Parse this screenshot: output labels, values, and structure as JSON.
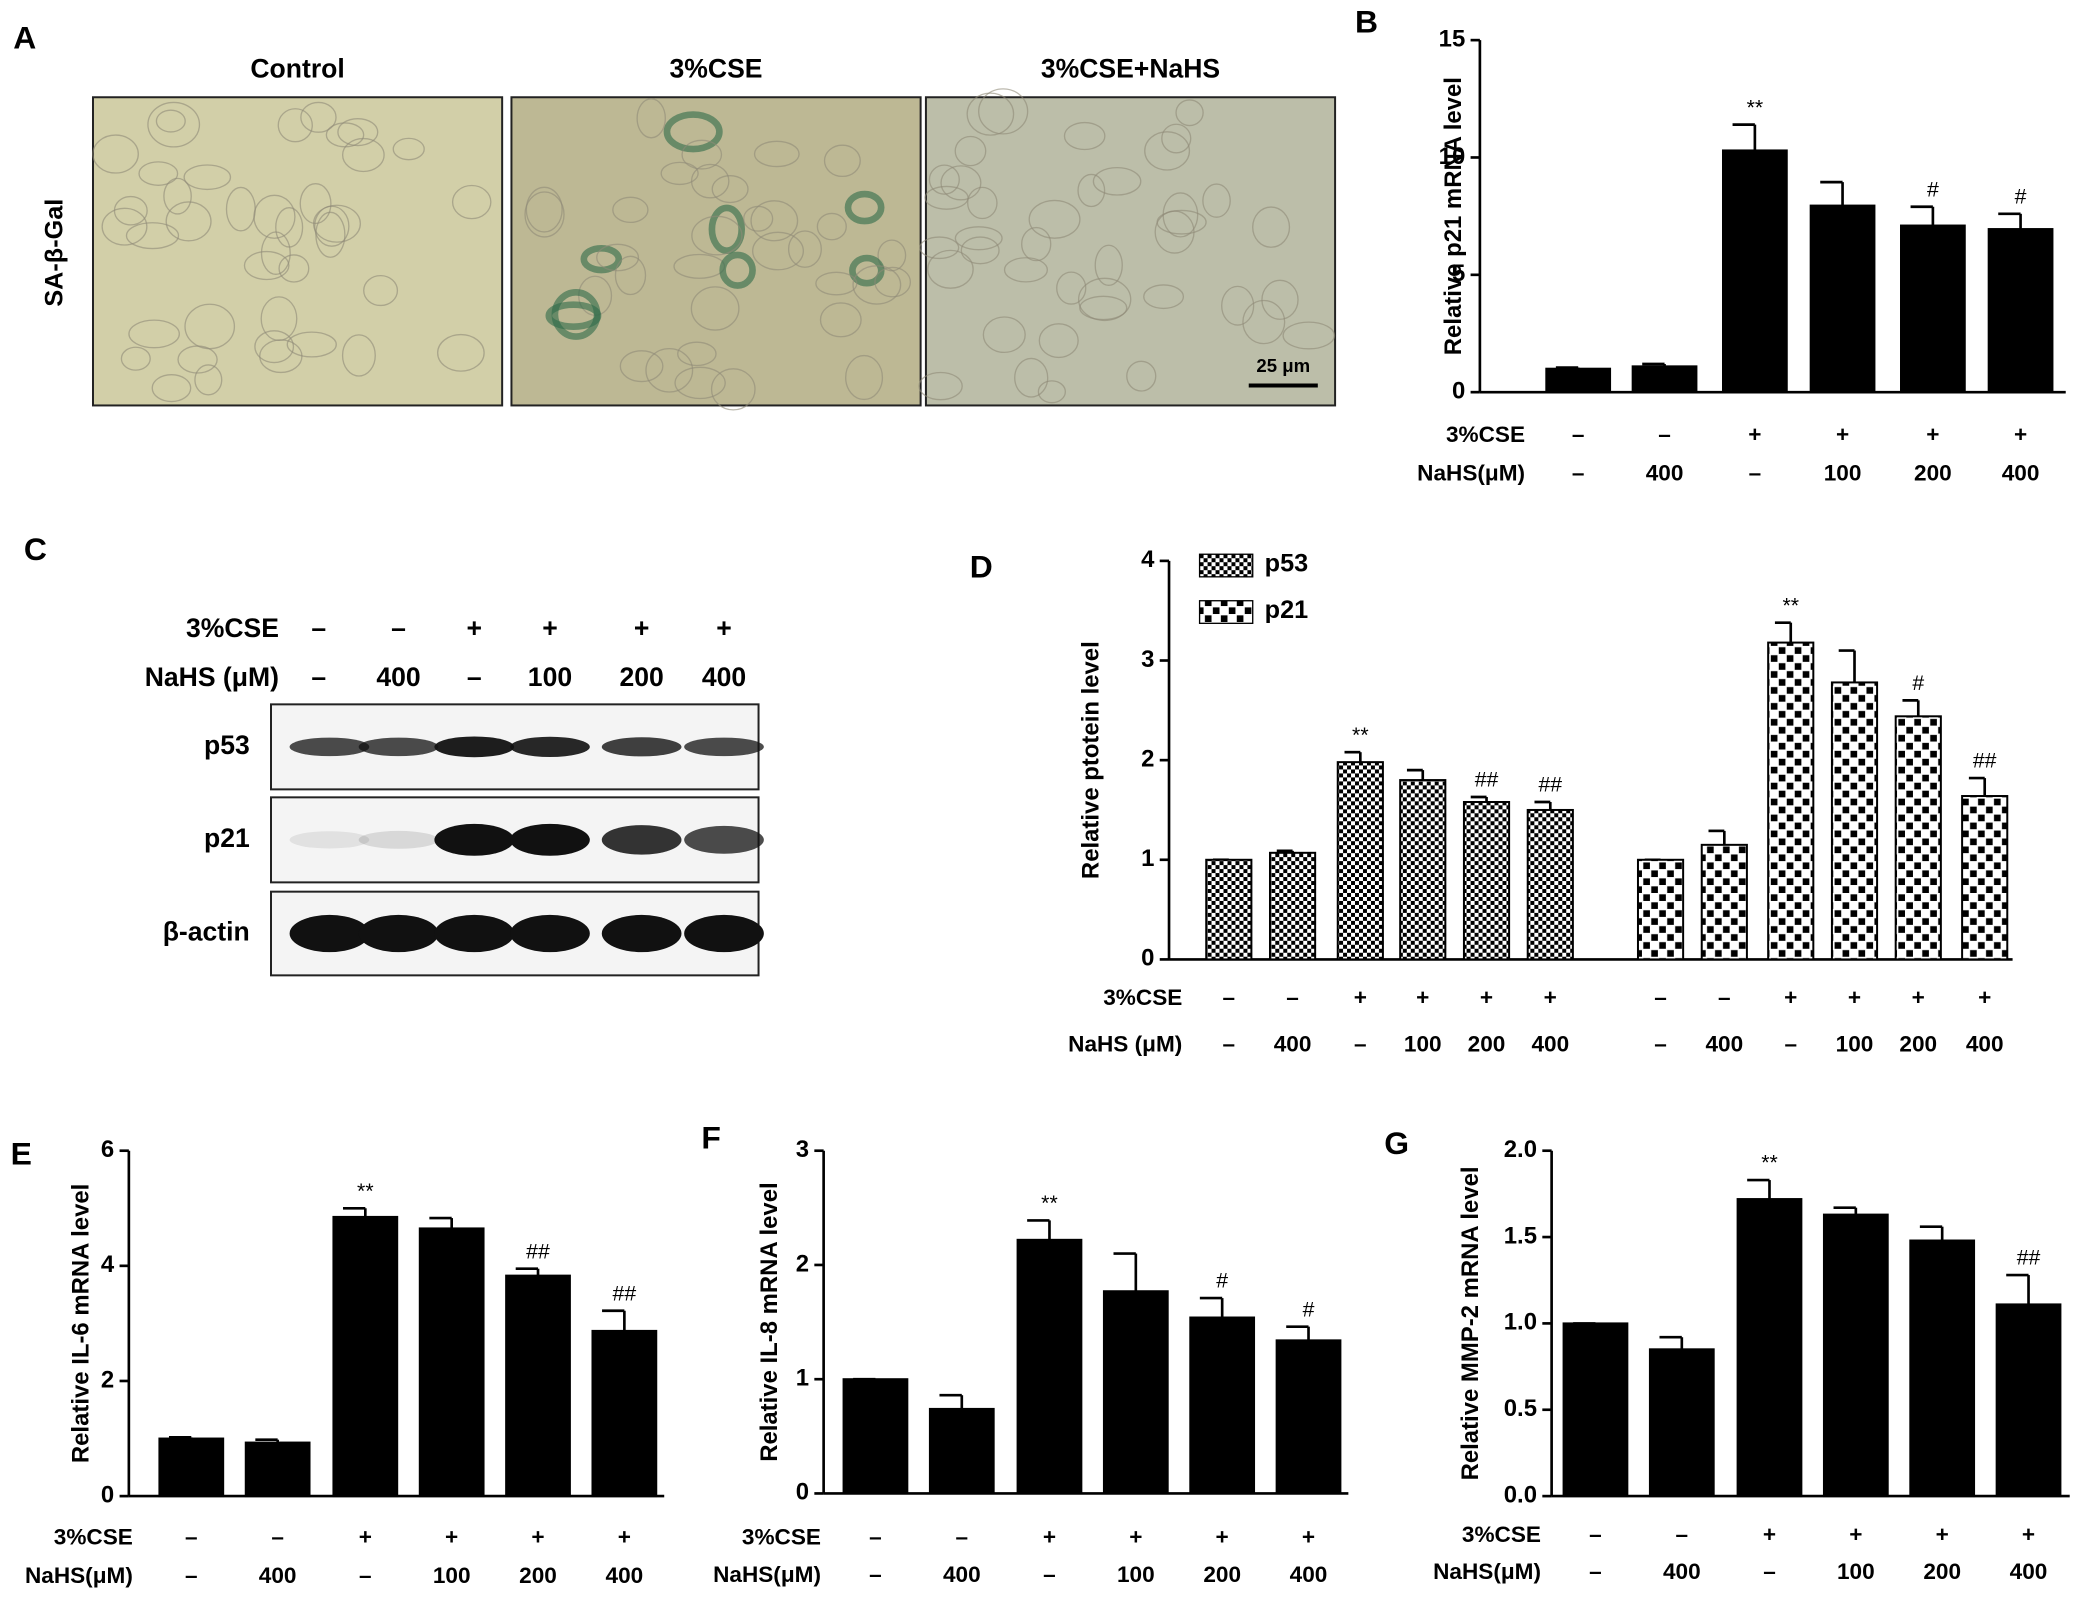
{
  "panel_a": {
    "letter": "A",
    "row_label": "SA-β-Gal",
    "columns": [
      "Control",
      "3%CSE",
      "3%CSE+NaHS"
    ],
    "scale_bar": "25 μm"
  },
  "panel_c": {
    "letter": "C",
    "treatment_rows": [
      {
        "label": "3%CSE",
        "values": [
          "–",
          "–",
          "+",
          "+",
          "+",
          "+"
        ]
      },
      {
        "label": "NaHS (μM)",
        "values": [
          "–",
          "400",
          "–",
          "100",
          "200",
          "400"
        ]
      }
    ],
    "blots": [
      "p53",
      "p21",
      "β-actin"
    ]
  },
  "chart_data": [
    {
      "type": "bar",
      "panel": "B",
      "ylabel": "Relative p21 mRNA level",
      "ylim": [
        0,
        15
      ],
      "yticks": [
        0,
        5,
        10,
        15
      ],
      "color": "#000000",
      "treatment_rows": [
        {
          "label": "3%CSE",
          "values": [
            "–",
            "–",
            "+",
            "+",
            "+",
            "+"
          ]
        },
        {
          "label": "NaHS(μM)",
          "values": [
            "–",
            "400",
            "–",
            "100",
            "200",
            "400"
          ]
        }
      ],
      "values": [
        1,
        1.1,
        10.3,
        7.95,
        7.1,
        6.95
      ],
      "errors": [
        0.05,
        0.1,
        1.1,
        1.0,
        0.8,
        0.65
      ],
      "annotations": [
        null,
        null,
        "**",
        null,
        "#",
        "#"
      ]
    },
    {
      "type": "grouped-bar",
      "panel": "D",
      "ylabel": "Relative ptotein level",
      "ylim": [
        0,
        4
      ],
      "yticks": [
        0,
        1,
        2,
        3,
        4
      ],
      "legend": "top-left",
      "treatment_rows": [
        {
          "label": "3%CSE",
          "values": [
            "–",
            "–",
            "+",
            "+",
            "+",
            "+",
            "–",
            "–",
            "+",
            "+",
            "+",
            "+"
          ]
        },
        {
          "label": "NaHS (μM)",
          "values": [
            "–",
            "400",
            "–",
            "100",
            "200",
            "400",
            "–",
            "400",
            "–",
            "100",
            "200",
            "400"
          ]
        }
      ],
      "series": [
        {
          "name": "p53",
          "color": "#000000",
          "pattern": "fine-check",
          "values": [
            1,
            1.07,
            1.98,
            1.8,
            1.58,
            1.5
          ],
          "errors": [
            0,
            0.02,
            0.1,
            0.1,
            0.05,
            0.08
          ],
          "annotations": [
            null,
            null,
            "**",
            null,
            "##",
            "##"
          ]
        },
        {
          "name": "p21",
          "color": "#000000",
          "pattern": "coarse-check",
          "values": [
            1,
            1.15,
            3.18,
            2.78,
            2.44,
            1.64
          ],
          "errors": [
            0,
            0.14,
            0.2,
            0.32,
            0.16,
            0.18
          ],
          "annotations": [
            null,
            null,
            "**",
            null,
            "#",
            "##"
          ]
        }
      ]
    },
    {
      "type": "bar",
      "panel": "E",
      "ylabel": "Relative IL-6 mRNA level",
      "ylim": [
        0,
        6
      ],
      "yticks": [
        0,
        2,
        4,
        6
      ],
      "color": "#000000",
      "treatment_rows": [
        {
          "label": "3%CSE",
          "values": [
            "–",
            "–",
            "+",
            "+",
            "+",
            "+"
          ]
        },
        {
          "label": "NaHS(μM)",
          "values": [
            "–",
            "400",
            "–",
            "100",
            "200",
            "400"
          ]
        }
      ],
      "values": [
        1,
        0.93,
        4.85,
        4.65,
        3.83,
        2.87
      ],
      "errors": [
        0.02,
        0.05,
        0.15,
        0.18,
        0.12,
        0.35
      ],
      "annotations": [
        null,
        null,
        "**",
        null,
        "##",
        "##"
      ]
    },
    {
      "type": "bar",
      "panel": "F",
      "ylabel": "Relative IL-8 mRNA level",
      "ylim": [
        0,
        3
      ],
      "yticks": [
        0,
        1,
        2,
        3
      ],
      "color": "#000000",
      "treatment_rows": [
        {
          "label": "3%CSE",
          "values": [
            "–",
            "–",
            "+",
            "+",
            "+",
            "+"
          ]
        },
        {
          "label": "NaHS(μM)",
          "values": [
            "–",
            "400",
            "–",
            "100",
            "200",
            "400"
          ]
        }
      ],
      "values": [
        1,
        0.74,
        2.22,
        1.77,
        1.54,
        1.34
      ],
      "errors": [
        0,
        0.12,
        0.17,
        0.33,
        0.17,
        0.12
      ],
      "annotations": [
        null,
        null,
        "**",
        null,
        "#",
        "#"
      ]
    },
    {
      "type": "bar",
      "panel": "G",
      "ylabel": "Relative MMP-2 mRNA level",
      "ylim": [
        0,
        2
      ],
      "yticks": [
        {
          "value": 0,
          "label": "0.0"
        },
        {
          "value": 0.5,
          "label": "0.5"
        },
        {
          "value": 1,
          "label": "1.0"
        },
        {
          "value": 1.5,
          "label": "1.5"
        },
        {
          "value": 2,
          "label": "2.0"
        }
      ],
      "color": "#000000",
      "treatment_rows": [
        {
          "label": "3%CSE",
          "values": [
            "–",
            "–",
            "+",
            "+",
            "+",
            "+"
          ]
        },
        {
          "label": "NaHS(μM)",
          "values": [
            "–",
            "400",
            "–",
            "100",
            "200",
            "400"
          ]
        }
      ],
      "values": [
        1,
        0.85,
        1.72,
        1.63,
        1.48,
        1.11
      ],
      "errors": [
        0,
        0.07,
        0.11,
        0.04,
        0.08,
        0.17
      ],
      "annotations": [
        null,
        null,
        "**",
        null,
        null,
        "##"
      ]
    }
  ]
}
